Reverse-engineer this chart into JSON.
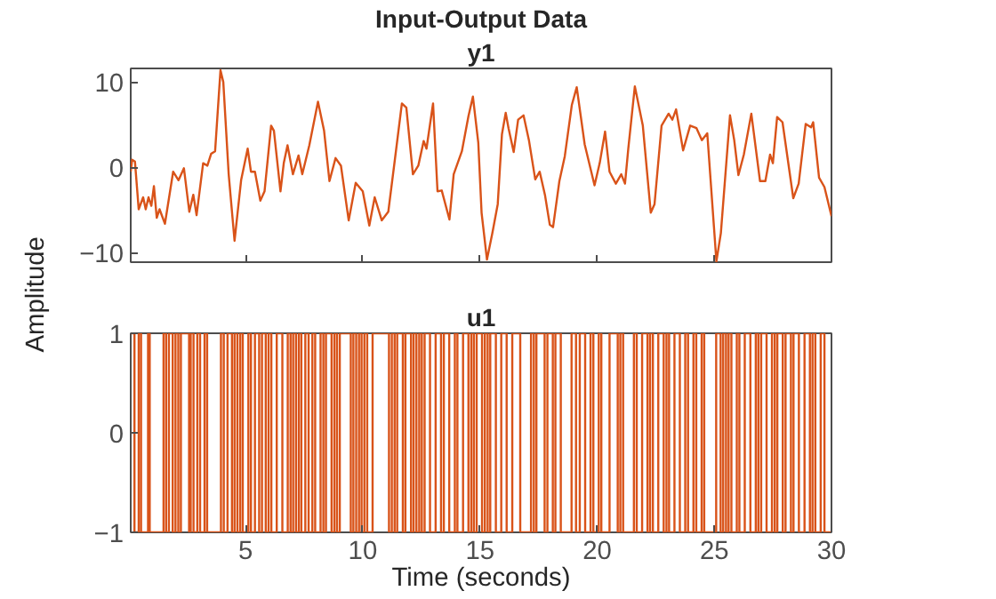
{
  "chart_data": [
    {
      "type": "line",
      "title": "Input-Output Data",
      "subtitle": "y1",
      "ylabel": "Amplitude",
      "xlim": [
        0.1,
        30
      ],
      "ylim": [
        -11.1,
        11.6
      ],
      "xticks": [
        5,
        10,
        15,
        20,
        25,
        30
      ],
      "yticks": [
        -10,
        0,
        10
      ],
      "tick_labels": "y",
      "grid": false,
      "series": [
        {
          "color": "#d95319",
          "x": [
            0.1,
            0.16,
            0.28,
            0.44,
            0.63,
            0.74,
            0.86,
            0.98,
            1.09,
            1.21,
            1.33,
            1.56,
            1.91,
            2.14,
            2.37,
            2.6,
            2.77,
            2.91,
            3.19,
            3.37,
            3.53,
            3.7,
            3.93,
            4.05,
            4.28,
            4.53,
            4.81,
            5.09,
            5.23,
            5.4,
            5.63,
            5.81,
            6.09,
            6.21,
            6.49,
            6.63,
            6.79,
            7.02,
            7.26,
            7.42,
            7.72,
            8.09,
            8.35,
            8.58,
            8.84,
            9.07,
            9.4,
            9.7,
            10.0,
            10.28,
            10.51,
            10.81,
            11.09,
            11.37,
            11.67,
            11.86,
            12.14,
            12.37,
            12.6,
            12.72,
            13.0,
            13.19,
            13.37,
            13.7,
            13.88,
            14.23,
            14.51,
            14.7,
            14.93,
            15.07,
            15.3,
            15.53,
            15.76,
            15.94,
            16.1,
            16.22,
            16.44,
            16.63,
            16.86,
            17.09,
            17.36,
            17.55,
            17.78,
            17.98,
            18.12,
            18.39,
            18.62,
            18.92,
            19.13,
            19.47,
            19.89,
            20.11,
            20.34,
            20.53,
            20.8,
            21.03,
            21.19,
            21.33,
            21.61,
            21.95,
            22.29,
            22.45,
            22.75,
            23.05,
            23.21,
            23.37,
            23.67,
            23.97,
            24.24,
            24.47,
            24.7,
            25.09,
            25.28,
            25.67,
            25.85,
            26.03,
            26.26,
            26.58,
            26.95,
            27.18,
            27.38,
            27.5,
            27.68,
            27.91,
            28.37,
            28.6,
            28.9,
            29.13,
            29.22,
            29.47,
            29.7,
            30.0
          ],
          "values": [
            -0.5,
            0.9,
            0.7,
            -4.9,
            -3.5,
            -4.9,
            -3.5,
            -4.5,
            -2.2,
            -5.9,
            -4.9,
            -6.6,
            -0.5,
            -1.5,
            -0.1,
            -5.2,
            -3.2,
            -5.6,
            0.5,
            0.2,
            1.6,
            1.9,
            11.4,
            10.0,
            -0.8,
            -8.6,
            -1.5,
            2.2,
            -0.5,
            -0.5,
            -3.9,
            -2.8,
            4.9,
            4.3,
            -2.8,
            0.5,
            2.6,
            -0.8,
            1.4,
            -0.8,
            2.6,
            7.7,
            4.3,
            -1.6,
            1.1,
            0.2,
            -6.2,
            -1.8,
            -2.8,
            -6.8,
            -3.5,
            -6.2,
            -5.2,
            0.9,
            7.5,
            7.0,
            -0.8,
            0.2,
            3.1,
            2.2,
            7.5,
            -2.8,
            -2.7,
            -6.1,
            -0.8,
            1.9,
            6.0,
            8.3,
            2.9,
            -5.3,
            -10.8,
            -7.7,
            -4.3,
            3.9,
            6.4,
            4.6,
            1.8,
            5.6,
            6.1,
            3.2,
            -1.4,
            -0.5,
            -3.3,
            -6.7,
            -7.0,
            -1.6,
            1.3,
            7.3,
            9.4,
            2.7,
            -2.1,
            0.5,
            4.2,
            -0.5,
            -1.9,
            -0.8,
            -1.9,
            2.2,
            9.5,
            4.9,
            -5.3,
            -4.3,
            4.9,
            6.3,
            5.6,
            6.8,
            2.0,
            4.9,
            4.6,
            3.2,
            4.0,
            -11.0,
            -7.7,
            6.1,
            3.2,
            -0.9,
            1.5,
            6.3,
            -1.6,
            -1.6,
            1.5,
            0.5,
            5.9,
            5.3,
            -3.6,
            -1.9,
            5.1,
            4.7,
            5.3,
            -1.2,
            -2.3,
            -5.7
          ]
        }
      ]
    },
    {
      "type": "step",
      "title": "u1",
      "xlabel": "Time (seconds)",
      "xlim": [
        0.1,
        30
      ],
      "ylim": [
        -1,
        1
      ],
      "xticks": [
        5,
        10,
        15,
        20,
        25,
        30
      ],
      "yticks": [
        -1,
        0,
        1
      ],
      "grid": false,
      "series": [
        {
          "color": "#d95319",
          "x": [
            0.1,
            0.26,
            0.44,
            0.54,
            0.84,
            0.91,
            1.5,
            1.61,
            1.73,
            1.89,
            2.01,
            2.13,
            2.24,
            2.59,
            2.66,
            2.78,
            2.94,
            3.06,
            3.25,
            3.36,
            3.95,
            4.07,
            4.23,
            4.42,
            4.53,
            4.65,
            4.77,
            4.88,
            5.12,
            5.23,
            5.4,
            5.58,
            5.7,
            5.86,
            5.98,
            6.1,
            6.33,
            6.57,
            6.8,
            6.92,
            7.03,
            7.15,
            7.27,
            7.38,
            7.55,
            7.69,
            7.85,
            7.97,
            8.2,
            8.32,
            8.43,
            8.67,
            8.79,
            8.9,
            9.02,
            9.49,
            9.6,
            9.72,
            9.84,
            9.95,
            10.07,
            10.19,
            10.42,
            11.12,
            11.24,
            11.36,
            11.47,
            11.71,
            11.82,
            12.06,
            12.17,
            12.29,
            12.41,
            12.52,
            12.64,
            12.87,
            13.11,
            13.34,
            13.46,
            13.69,
            13.93,
            14.04,
            14.28,
            14.51,
            14.63,
            14.74,
            14.86,
            15.09,
            15.21,
            15.33,
            15.44,
            15.68,
            15.91,
            16.14,
            16.38,
            16.72,
            17.18,
            17.3,
            17.41,
            17.76,
            17.88,
            18.11,
            18.22,
            18.45,
            18.91,
            19.1,
            19.26,
            19.49,
            19.72,
            19.84,
            20.07,
            20.18,
            20.53,
            20.88,
            20.99,
            21.11,
            21.57,
            21.69,
            21.92,
            22.15,
            22.26,
            22.38,
            22.61,
            22.84,
            22.96,
            23.07,
            23.3,
            23.53,
            23.76,
            23.88,
            24.11,
            24.23,
            24.46,
            24.57,
            25.08,
            25.27,
            25.38,
            25.5,
            25.61,
            25.73,
            25.96,
            26.07,
            26.3,
            26.54,
            26.77,
            26.88,
            27.0,
            27.23,
            27.46,
            27.58,
            27.69,
            27.92,
            28.04,
            28.27,
            28.38,
            28.61,
            28.85,
            29.08,
            29.19,
            29.31,
            29.54,
            29.7,
            30
          ],
          "values": [
            1,
            -1,
            1,
            -1,
            1,
            -1,
            1,
            -1,
            1,
            -1,
            1,
            -1,
            1,
            -1,
            1,
            -1,
            1,
            -1,
            1,
            -1,
            1,
            -1,
            1,
            -1,
            1,
            -1,
            1,
            -1,
            1,
            -1,
            1,
            -1,
            1,
            -1,
            1,
            -1,
            1,
            -1,
            1,
            -1,
            1,
            -1,
            1,
            -1,
            1,
            -1,
            1,
            -1,
            1,
            -1,
            1,
            -1,
            1,
            -1,
            1,
            -1,
            1,
            -1,
            1,
            -1,
            1,
            -1,
            1,
            -1,
            1,
            -1,
            1,
            -1,
            1,
            -1,
            1,
            -1,
            1,
            -1,
            1,
            -1,
            1,
            -1,
            1,
            -1,
            1,
            -1,
            1,
            -1,
            1,
            -1,
            1,
            -1,
            1,
            -1,
            1,
            -1,
            1,
            -1,
            1,
            -1,
            1,
            -1,
            1,
            -1,
            1,
            -1,
            1,
            -1,
            1,
            -1,
            1,
            -1,
            1,
            -1,
            1,
            -1,
            1,
            -1,
            1,
            -1,
            1,
            -1,
            1,
            -1,
            1,
            -1,
            1,
            -1,
            1,
            -1,
            1,
            -1,
            1,
            -1,
            1,
            -1,
            1,
            -1,
            1,
            -1,
            1,
            -1,
            1,
            -1,
            1,
            -1,
            1,
            -1,
            1,
            -1,
            1,
            -1,
            1,
            -1,
            1,
            -1,
            1,
            -1,
            1,
            -1,
            1,
            -1,
            1,
            -1,
            1,
            -1,
            -1
          ]
        }
      ]
    }
  ]
}
